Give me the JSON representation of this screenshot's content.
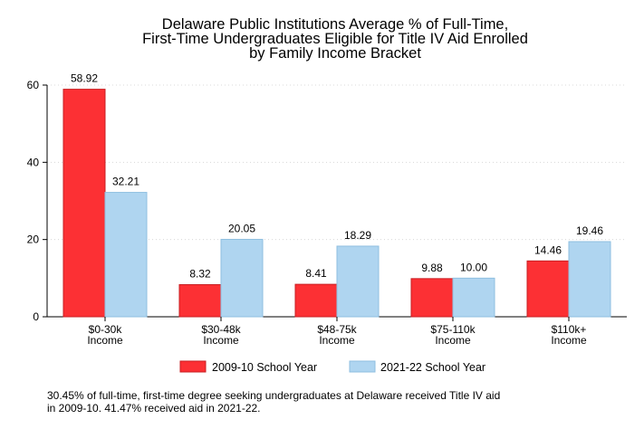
{
  "chart_data": {
    "type": "bar",
    "title": [
      "Delaware Public Institutions Average % of Full-Time,",
      "First-Time Undergraduates Eligible for Title IV Aid Enrolled",
      "by Family Income Bracket"
    ],
    "categories": [
      [
        "$0-30k",
        "Income"
      ],
      [
        "$30-48k",
        "Income"
      ],
      [
        "$48-75k",
        "Income"
      ],
      [
        "$75-110k",
        "Income"
      ],
      [
        "$110k+",
        "Income"
      ]
    ],
    "series": [
      {
        "name": "2009-10 School Year",
        "color": "#fc3034",
        "values": [
          58.92,
          8.32,
          8.41,
          9.88,
          14.46
        ],
        "labels": [
          "58.92",
          "8.32",
          "8.41",
          "9.88",
          "14.46"
        ]
      },
      {
        "name": "2021-22 School Year",
        "color": "#afd5f0",
        "values": [
          32.21,
          20.05,
          18.29,
          10.0,
          19.46
        ],
        "labels": [
          "32.21",
          "20.05",
          "18.29",
          "10.00",
          "19.46"
        ]
      }
    ],
    "ylim": [
      0,
      60
    ],
    "yticks": [
      0,
      20,
      40,
      60
    ],
    "grid": true,
    "legend": "bottom"
  },
  "note": "30.45% of full-time, first-time degree seeking undergraduates at Delaware received Title IV aid\nin 2009-10. 41.47% received aid in 2021-22."
}
